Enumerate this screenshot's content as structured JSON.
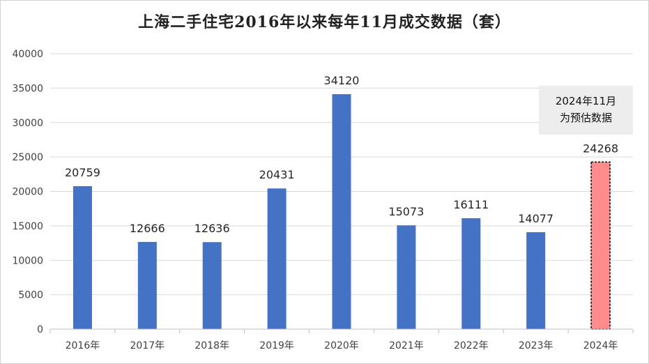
{
  "chart_data": {
    "type": "bar",
    "title": "上海二手住宅2016年以来每年11月成交数据（套）",
    "categories": [
      "2016年",
      "2017年",
      "2018年",
      "2019年",
      "2020年",
      "2021年",
      "2022年",
      "2023年",
      "2024年"
    ],
    "values": [
      20759,
      12666,
      12636,
      20431,
      34120,
      15073,
      16111,
      14077,
      24268
    ],
    "data_labels": [
      "20759",
      "12666",
      "12636",
      "20431",
      "34120",
      "15073",
      "16111",
      "14077",
      "24268"
    ],
    "ylim": [
      0,
      40000
    ],
    "yticks": [
      0,
      5000,
      10000,
      15000,
      20000,
      25000,
      30000,
      35000,
      40000
    ],
    "ytick_labels": [
      "0",
      "5000",
      "10000",
      "15000",
      "20000",
      "25000",
      "30000",
      "35000",
      "40000"
    ],
    "grid": true,
    "colors": {
      "actual": "#4472C4",
      "estimate": "#FF8C8C",
      "estimate_border": "#000000"
    },
    "estimate_index": 8,
    "annotation": {
      "line1": "2024年11月",
      "line2": "为预估数据"
    }
  }
}
